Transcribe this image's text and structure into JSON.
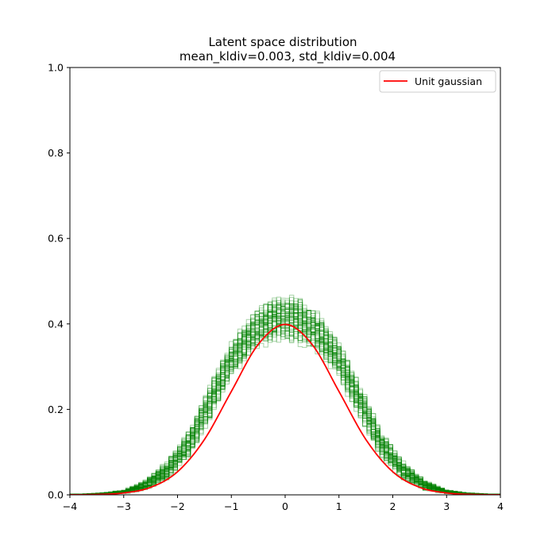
{
  "chart_data": {
    "type": "line",
    "title": "Latent space distribution",
    "subtitle": "mean_kldiv=0.003, std_kldiv=0.004",
    "xlabel": "",
    "ylabel": "",
    "xlim": [
      -4,
      4
    ],
    "ylim": [
      0,
      1.0
    ],
    "xticks": [
      -4,
      -3,
      -2,
      -1,
      0,
      1,
      2,
      3,
      4
    ],
    "xtick_labels": [
      "−4",
      "−3",
      "−2",
      "−1",
      "0",
      "1",
      "2",
      "3",
      "4"
    ],
    "yticks": [
      0,
      0.2,
      0.4,
      0.6,
      0.8,
      1.0
    ],
    "ytick_labels": [
      "0.0",
      "0.2",
      "0.4",
      "0.6",
      "0.8",
      "1.0"
    ],
    "grid": false,
    "legend": {
      "position": "top-right",
      "entries": [
        "Unit gaussian"
      ]
    },
    "series": [
      {
        "name": "Unit gaussian",
        "type": "line",
        "color": "#ff0000",
        "x": [
          -4,
          -3.5,
          -3,
          -2.5,
          -2,
          -1.5,
          -1,
          -0.5,
          0,
          0.5,
          1,
          1.5,
          2,
          2.5,
          3,
          3.5,
          4
        ],
        "values": [
          0.0001,
          0.0009,
          0.0044,
          0.0175,
          0.054,
          0.1295,
          0.242,
          0.3521,
          0.3989,
          0.3521,
          0.242,
          0.1295,
          0.054,
          0.0175,
          0.0044,
          0.0009,
          0.0001
        ]
      },
      {
        "type": "step-histogram",
        "color": "#008000",
        "x_bin_edges": [
          -4,
          -3.6,
          -3.2,
          -2.8,
          -2.4,
          -2.0,
          -1.6,
          -1.2,
          -0.8,
          -0.4,
          0.0,
          0.4,
          0.8,
          1.2,
          1.6,
          2.0,
          2.4,
          2.8,
          3.2,
          3.6,
          4.0
        ],
        "upper_envelope": [
          0.002,
          0.005,
          0.012,
          0.035,
          0.08,
          0.15,
          0.26,
          0.36,
          0.43,
          0.47,
          0.47,
          0.43,
          0.36,
          0.26,
          0.15,
          0.08,
          0.035,
          0.012,
          0.005,
          0.002
        ],
        "lower_envelope": [
          0.0,
          0.0,
          0.002,
          0.008,
          0.03,
          0.08,
          0.17,
          0.27,
          0.33,
          0.35,
          0.35,
          0.33,
          0.27,
          0.17,
          0.08,
          0.03,
          0.008,
          0.002,
          0.0,
          0.0
        ]
      }
    ]
  }
}
